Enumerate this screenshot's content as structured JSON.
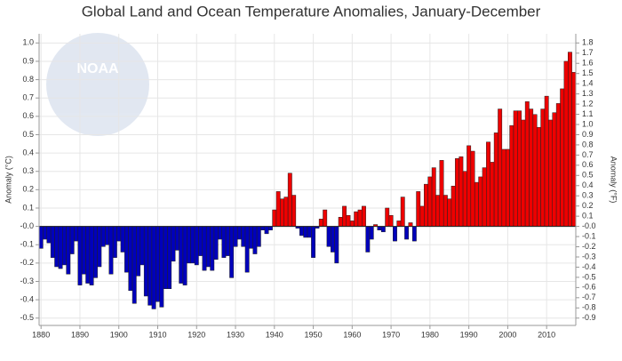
{
  "chart_data": {
    "type": "bar",
    "title": "Global Land and Ocean Temperature Anomalies, January-December",
    "y_label": "Anomaly (°C)",
    "y2_label": "Anomaly (°F)",
    "logo_text": "NOAA",
    "x": [
      1880,
      1881,
      1882,
      1883,
      1884,
      1885,
      1886,
      1887,
      1888,
      1889,
      1890,
      1891,
      1892,
      1893,
      1894,
      1895,
      1896,
      1897,
      1898,
      1899,
      1900,
      1901,
      1902,
      1903,
      1904,
      1905,
      1906,
      1907,
      1908,
      1909,
      1910,
      1911,
      1912,
      1913,
      1914,
      1915,
      1916,
      1917,
      1918,
      1919,
      1920,
      1921,
      1922,
      1923,
      1924,
      1925,
      1926,
      1927,
      1928,
      1929,
      1930,
      1931,
      1932,
      1933,
      1934,
      1935,
      1936,
      1937,
      1938,
      1939,
      1940,
      1941,
      1942,
      1943,
      1944,
      1945,
      1946,
      1947,
      1948,
      1949,
      1950,
      1951,
      1952,
      1953,
      1954,
      1955,
      1956,
      1957,
      1958,
      1959,
      1960,
      1961,
      1962,
      1963,
      1964,
      1965,
      1966,
      1967,
      1968,
      1969,
      1970,
      1971,
      1972,
      1973,
      1974,
      1975,
      1976,
      1977,
      1978,
      1979,
      1980,
      1981,
      1982,
      1983,
      1984,
      1985,
      1986,
      1987,
      1988,
      1989,
      1990,
      1991,
      1992,
      1993,
      1994,
      1995,
      1996,
      1997,
      1998,
      1999,
      2000,
      2001,
      2002,
      2003,
      2004,
      2005,
      2006,
      2007,
      2008,
      2009,
      2010,
      2011,
      2012,
      2013,
      2014,
      2015,
      2016,
      2017
    ],
    "values": [
      -0.12,
      -0.07,
      -0.09,
      -0.17,
      -0.22,
      -0.23,
      -0.21,
      -0.26,
      -0.15,
      -0.08,
      -0.32,
      -0.26,
      -0.31,
      -0.32,
      -0.28,
      -0.22,
      -0.11,
      -0.1,
      -0.26,
      -0.17,
      -0.08,
      -0.14,
      -0.25,
      -0.35,
      -0.42,
      -0.27,
      -0.21,
      -0.38,
      -0.43,
      -0.45,
      -0.41,
      -0.44,
      -0.34,
      -0.34,
      -0.19,
      -0.13,
      -0.31,
      -0.32,
      -0.2,
      -0.2,
      -0.21,
      -0.16,
      -0.24,
      -0.22,
      -0.24,
      -0.18,
      -0.07,
      -0.17,
      -0.16,
      -0.28,
      -0.11,
      -0.07,
      -0.11,
      -0.25,
      -0.12,
      -0.15,
      -0.11,
      -0.02,
      -0.04,
      -0.02,
      0.09,
      0.19,
      0.15,
      0.16,
      0.29,
      0.17,
      -0.01,
      -0.05,
      -0.06,
      -0.06,
      -0.17,
      -0.01,
      0.04,
      0.09,
      -0.11,
      -0.14,
      -0.2,
      0.05,
      0.11,
      0.06,
      0.03,
      0.08,
      0.09,
      0.11,
      -0.14,
      -0.07,
      0.01,
      -0.02,
      -0.03,
      0.1,
      0.06,
      -0.08,
      0.03,
      0.16,
      -0.07,
      0.02,
      -0.08,
      0.19,
      0.11,
      0.23,
      0.27,
      0.32,
      0.17,
      0.36,
      0.17,
      0.15,
      0.22,
      0.37,
      0.38,
      0.3,
      0.44,
      0.41,
      0.24,
      0.27,
      0.32,
      0.46,
      0.35,
      0.51,
      0.64,
      0.42,
      0.42,
      0.55,
      0.63,
      0.63,
      0.58,
      0.68,
      0.64,
      0.61,
      0.54,
      0.64,
      0.71,
      0.58,
      0.62,
      0.67,
      0.75,
      0.9,
      0.95,
      0.84
    ],
    "positive_color": "#ee0000",
    "negative_color": "#0000bb",
    "xlim": [
      1879.5,
      2017.5
    ],
    "xticks": [
      1880,
      1890,
      1900,
      1910,
      1920,
      1930,
      1940,
      1950,
      1960,
      1970,
      1980,
      1990,
      2000,
      2010
    ],
    "ylim": [
      -0.54,
      1.05
    ],
    "yticks": [
      {
        "value": 1,
        "label": "1.0"
      },
      0.9,
      0.8,
      0.7,
      0.6,
      0.5,
      0.4,
      0.3,
      0.2,
      0.1,
      {
        "value": 0,
        "label": "-0.0"
      },
      -0.1,
      -0.2,
      -0.3,
      -0.4,
      -0.5
    ],
    "y2lim": [
      -0.972,
      1.89
    ],
    "y2ticks": [
      1.8,
      1.7,
      1.6,
      1.5,
      1.4,
      1.3,
      1.2,
      1.1,
      {
        "value": 1,
        "label": "1.0"
      },
      0.9,
      0.8,
      0.7,
      0.6,
      0.5,
      0.4,
      0.3,
      0.2,
      0.1,
      {
        "value": 0,
        "label": "-0.0"
      },
      -0.1,
      -0.2,
      -0.3,
      -0.4,
      -0.5,
      -0.6,
      -0.7,
      -0.8,
      -0.9
    ],
    "grid": true
  }
}
